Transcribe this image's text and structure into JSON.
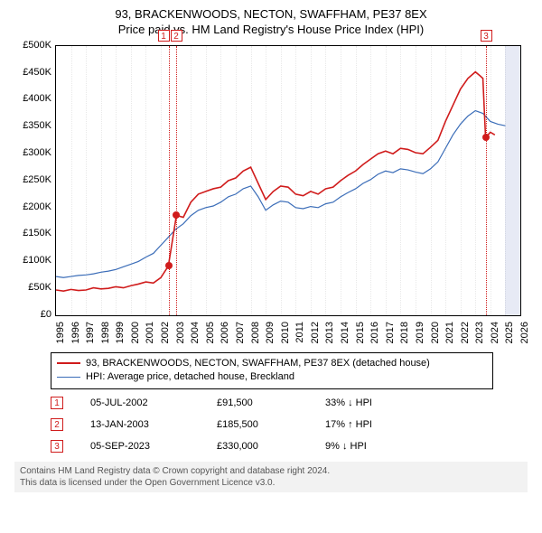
{
  "title_line1": "93, BRACKENWOODS, NECTON, SWAFFHAM, PE37 8EX",
  "title_line2": "Price paid vs. HM Land Registry's House Price Index (HPI)",
  "y": {
    "min": 0,
    "max": 500000,
    "step": 50000,
    "ticks": [
      "£0",
      "£50K",
      "£100K",
      "£150K",
      "£200K",
      "£250K",
      "£300K",
      "£350K",
      "£400K",
      "£450K",
      "£500K"
    ]
  },
  "x": {
    "min": 1995,
    "max": 2026,
    "ticks": [
      1995,
      1996,
      1997,
      1998,
      1999,
      2000,
      2001,
      2002,
      2003,
      2004,
      2005,
      2006,
      2007,
      2008,
      2009,
      2010,
      2011,
      2012,
      2013,
      2014,
      2015,
      2016,
      2017,
      2018,
      2019,
      2020,
      2021,
      2022,
      2023,
      2024,
      2025,
      2026
    ]
  },
  "colors": {
    "red": "#d01c1c",
    "blue": "#3b6db8",
    "grid": "#bbbbbb",
    "shade": "rgba(120,140,200,0.18)",
    "footer_bg": "#f2f2f2",
    "footer_text": "#555555"
  },
  "lines": {
    "red_width": 1.6,
    "blue_width": 1.2
  },
  "series_red": [
    [
      1995.0,
      47
    ],
    [
      1995.5,
      45
    ],
    [
      1996.0,
      48
    ],
    [
      1996.5,
      46
    ],
    [
      1997.0,
      47
    ],
    [
      1997.5,
      51
    ],
    [
      1998.0,
      49
    ],
    [
      1998.5,
      50
    ],
    [
      1999.0,
      53
    ],
    [
      1999.5,
      51
    ],
    [
      2000.0,
      55
    ],
    [
      2000.5,
      58
    ],
    [
      2001.0,
      62
    ],
    [
      2001.5,
      60
    ],
    [
      2002.0,
      70
    ],
    [
      2002.5,
      91.5
    ],
    [
      2003.04,
      185.5
    ],
    [
      2003.5,
      182
    ],
    [
      2004.0,
      210
    ],
    [
      2004.5,
      225
    ],
    [
      2005.0,
      230
    ],
    [
      2005.5,
      235
    ],
    [
      2006.0,
      238
    ],
    [
      2006.5,
      250
    ],
    [
      2007.0,
      255
    ],
    [
      2007.5,
      268
    ],
    [
      2008.0,
      275
    ],
    [
      2008.5,
      245
    ],
    [
      2009.0,
      215
    ],
    [
      2009.5,
      230
    ],
    [
      2010.0,
      240
    ],
    [
      2010.5,
      238
    ],
    [
      2011.0,
      225
    ],
    [
      2011.5,
      222
    ],
    [
      2012.0,
      230
    ],
    [
      2012.5,
      225
    ],
    [
      2013.0,
      235
    ],
    [
      2013.5,
      238
    ],
    [
      2014.0,
      250
    ],
    [
      2014.5,
      260
    ],
    [
      2015.0,
      268
    ],
    [
      2015.5,
      280
    ],
    [
      2016.0,
      290
    ],
    [
      2016.5,
      300
    ],
    [
      2017.0,
      305
    ],
    [
      2017.5,
      300
    ],
    [
      2018.0,
      310
    ],
    [
      2018.5,
      308
    ],
    [
      2019.0,
      302
    ],
    [
      2019.5,
      300
    ],
    [
      2020.0,
      312
    ],
    [
      2020.5,
      325
    ],
    [
      2021.0,
      360
    ],
    [
      2021.5,
      390
    ],
    [
      2022.0,
      420
    ],
    [
      2022.5,
      440
    ],
    [
      2023.0,
      452
    ],
    [
      2023.3,
      445
    ],
    [
      2023.5,
      440
    ],
    [
      2023.68,
      330
    ],
    [
      2024.0,
      340
    ],
    [
      2024.3,
      335
    ]
  ],
  "series_blue": [
    [
      1995.0,
      72
    ],
    [
      1995.5,
      70
    ],
    [
      1996.0,
      72
    ],
    [
      1996.5,
      74
    ],
    [
      1997.0,
      75
    ],
    [
      1997.5,
      77
    ],
    [
      1998.0,
      80
    ],
    [
      1998.5,
      82
    ],
    [
      1999.0,
      85
    ],
    [
      1999.5,
      90
    ],
    [
      2000.0,
      95
    ],
    [
      2000.5,
      100
    ],
    [
      2001.0,
      108
    ],
    [
      2001.5,
      115
    ],
    [
      2002.0,
      130
    ],
    [
      2002.5,
      145
    ],
    [
      2003.0,
      160
    ],
    [
      2003.5,
      170
    ],
    [
      2004.0,
      185
    ],
    [
      2004.5,
      195
    ],
    [
      2005.0,
      200
    ],
    [
      2005.5,
      203
    ],
    [
      2006.0,
      210
    ],
    [
      2006.5,
      220
    ],
    [
      2007.0,
      225
    ],
    [
      2007.5,
      235
    ],
    [
      2008.0,
      240
    ],
    [
      2008.5,
      220
    ],
    [
      2009.0,
      195
    ],
    [
      2009.5,
      205
    ],
    [
      2010.0,
      212
    ],
    [
      2010.5,
      210
    ],
    [
      2011.0,
      200
    ],
    [
      2011.5,
      198
    ],
    [
      2012.0,
      202
    ],
    [
      2012.5,
      200
    ],
    [
      2013.0,
      207
    ],
    [
      2013.5,
      210
    ],
    [
      2014.0,
      220
    ],
    [
      2014.5,
      228
    ],
    [
      2015.0,
      235
    ],
    [
      2015.5,
      245
    ],
    [
      2016.0,
      252
    ],
    [
      2016.5,
      262
    ],
    [
      2017.0,
      268
    ],
    [
      2017.5,
      265
    ],
    [
      2018.0,
      272
    ],
    [
      2018.5,
      270
    ],
    [
      2019.0,
      266
    ],
    [
      2019.5,
      263
    ],
    [
      2020.0,
      272
    ],
    [
      2020.5,
      285
    ],
    [
      2021.0,
      310
    ],
    [
      2021.5,
      335
    ],
    [
      2022.0,
      355
    ],
    [
      2022.5,
      370
    ],
    [
      2023.0,
      380
    ],
    [
      2023.5,
      375
    ],
    [
      2024.0,
      360
    ],
    [
      2024.5,
      355
    ],
    [
      2025.0,
      352
    ]
  ],
  "sale_markers": [
    {
      "n": "1",
      "year": 2002.51,
      "price": 91500
    },
    {
      "n": "2",
      "year": 2003.04,
      "price": 185500
    },
    {
      "n": "3",
      "year": 2023.68,
      "price": 330000
    }
  ],
  "shade_future": {
    "from": 2025.0,
    "to": 2026.0
  },
  "legend": {
    "red": "93, BRACKENWOODS, NECTON, SWAFFHAM, PE37 8EX (detached house)",
    "blue": "HPI: Average price, detached house, Breckland"
  },
  "events": [
    {
      "n": "1",
      "date": "05-JUL-2002",
      "price": "£91,500",
      "hpi": "33% ↓ HPI"
    },
    {
      "n": "2",
      "date": "13-JAN-2003",
      "price": "£185,500",
      "hpi": "17% ↑ HPI"
    },
    {
      "n": "3",
      "date": "05-SEP-2023",
      "price": "£330,000",
      "hpi": "9% ↓ HPI"
    }
  ],
  "footer_line1": "Contains HM Land Registry data © Crown copyright and database right 2024.",
  "footer_line2": "This data is licensed under the Open Government Licence v3.0."
}
